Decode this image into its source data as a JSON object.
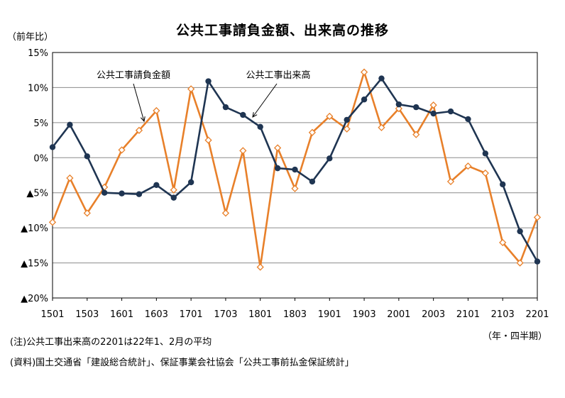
{
  "chart_data": {
    "type": "line",
    "title": "公共工事請負金額、出来高の推移",
    "ylabel": "（前年比）",
    "xlabel": "（年・四半期）",
    "ylim": [
      -20,
      15
    ],
    "y_ticks": [
      {
        "value": 15,
        "label": "15%"
      },
      {
        "value": 10,
        "label": "10%"
      },
      {
        "value": 5,
        "label": "5%"
      },
      {
        "value": 0,
        "label": "0%"
      },
      {
        "value": -5,
        "label": "▲5%"
      },
      {
        "value": -10,
        "label": "▲10%"
      },
      {
        "value": -15,
        "label": "▲15%"
      },
      {
        "value": -20,
        "label": "▲20%"
      }
    ],
    "x_tick_labels": [
      "1501",
      "1503",
      "1601",
      "1603",
      "1701",
      "1703",
      "1801",
      "1803",
      "1901",
      "1903",
      "2001",
      "2003",
      "2101",
      "2103",
      "2201"
    ],
    "categories": [
      "1501",
      "1502",
      "1503",
      "1504",
      "1601",
      "1602",
      "1603",
      "1604",
      "1701",
      "1702",
      "1703",
      "1704",
      "1801",
      "1802",
      "1803",
      "1804",
      "1901",
      "1902",
      "1903",
      "1904",
      "2001",
      "2002",
      "2003",
      "2004",
      "2101",
      "2102",
      "2103",
      "2104",
      "2201"
    ],
    "grid": true,
    "series": [
      {
        "name": "公共工事請負金額",
        "color": "#E8802A",
        "marker": "diamond-open",
        "values": [
          -9.2,
          -2.9,
          -7.9,
          -4.2,
          1.1,
          3.9,
          6.7,
          -4.6,
          9.8,
          2.5,
          -7.9,
          1.0,
          -15.6,
          1.4,
          -4.4,
          3.6,
          5.9,
          4.1,
          12.2,
          4.3,
          7.0,
          3.3,
          7.5,
          -3.4,
          -1.2,
          -2.2,
          -12.1,
          -15.0,
          -8.5
        ]
      },
      {
        "name": "公共工事出来高",
        "color": "#1F3552",
        "marker": "circle-filled",
        "values": [
          1.5,
          4.7,
          0.2,
          -5.0,
          -5.1,
          -5.2,
          -3.9,
          -5.7,
          -3.5,
          10.9,
          7.2,
          6.1,
          4.4,
          -1.5,
          -1.7,
          -3.4,
          -0.1,
          5.4,
          8.3,
          11.3,
          7.6,
          7.2,
          6.3,
          6.6,
          5.5,
          0.6,
          -3.8,
          -10.5,
          -14.8
        ]
      }
    ],
    "annotations": [
      {
        "text": "公共工事請負金額",
        "series": "公共工事請負金額"
      },
      {
        "text": "公共工事出来高",
        "series": "公共工事出来高"
      }
    ]
  },
  "notes": {
    "note": "(注)公共工事出来高の2201は22年1、2月の平均",
    "source": "(資料)国土交通省「建設総合統計」、保証事業会社協会「公共工事前払金保証統計」"
  }
}
